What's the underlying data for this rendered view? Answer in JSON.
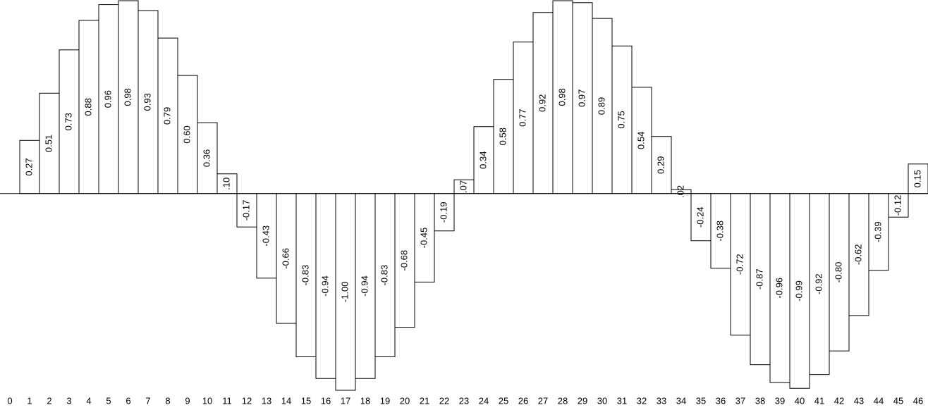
{
  "chart_data": {
    "type": "bar",
    "categories": [
      "0",
      "1",
      "2",
      "3",
      "4",
      "5",
      "6",
      "7",
      "8",
      "9",
      "10",
      "11",
      "12",
      "13",
      "14",
      "15",
      "16",
      "17",
      "18",
      "19",
      "20",
      "21",
      "22",
      "23",
      "24",
      "25",
      "26",
      "27",
      "28",
      "29",
      "30",
      "31",
      "32",
      "33",
      "34",
      "35",
      "36",
      "37",
      "38",
      "39",
      "40",
      "41",
      "42",
      "43",
      "44",
      "45",
      "46"
    ],
    "values": [
      null,
      0.27,
      0.51,
      0.73,
      0.88,
      0.96,
      0.98,
      0.93,
      0.79,
      0.6,
      0.36,
      0.1,
      -0.17,
      -0.43,
      -0.66,
      -0.83,
      -0.94,
      -1.0,
      -0.94,
      -0.83,
      -0.68,
      -0.45,
      -0.19,
      0.07,
      0.34,
      0.58,
      0.77,
      0.92,
      0.98,
      0.97,
      0.89,
      0.75,
      0.54,
      0.29,
      0.02,
      -0.24,
      -0.38,
      -0.72,
      -0.87,
      -0.96,
      -0.99,
      -0.92,
      -0.8,
      -0.62,
      -0.39,
      -0.12,
      0.15
    ],
    "value_labels": [
      null,
      "0.27",
      "0.51",
      "0.73",
      "0.88",
      "0.96",
      "0.98",
      "0.93",
      "0.79",
      "0.60",
      "0.36",
      ".10",
      "-0.17",
      "-0.43",
      "-0.66",
      "-0.83",
      "-0.94",
      "-1.00",
      "-0.94",
      "-0.83",
      "-0.68",
      "-0.45",
      "-0.19",
      ".07",
      "0.34",
      "0.58",
      "0.77",
      "0.92",
      "0.98",
      "0.97",
      "0.89",
      "0.75",
      "0.54",
      "0.29",
      ".02",
      "-0.24",
      "-0.38",
      "-0.72",
      "-0.87",
      "-0.96",
      "-0.99",
      "-0.92",
      "-0.80",
      "-0.62",
      "-0.39",
      "-0.12",
      "0.15"
    ],
    "color": "#ffffff",
    "ylim": [
      -1.0,
      0.98
    ]
  }
}
